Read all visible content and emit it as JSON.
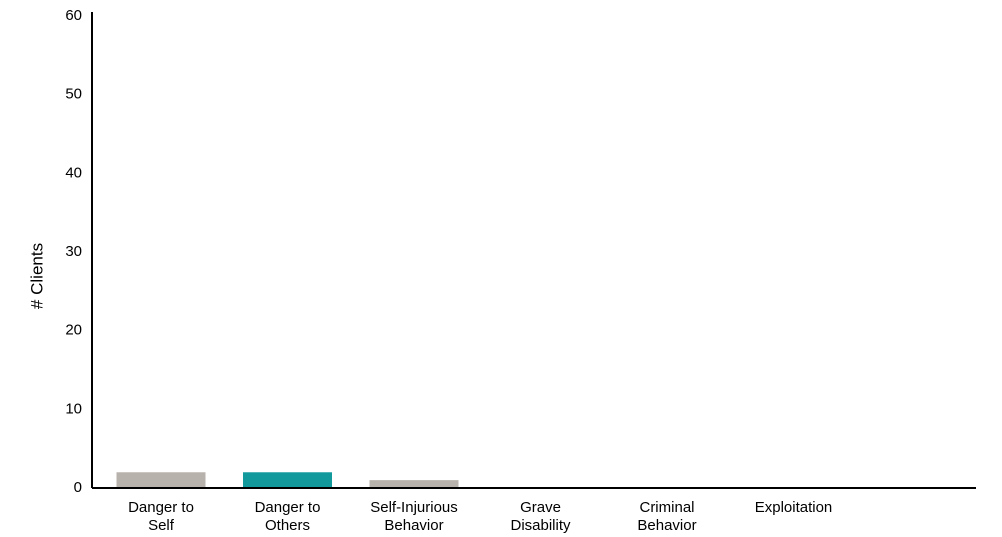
{
  "chart_data": {
    "type": "bar",
    "title": "",
    "xlabel": "",
    "ylabel": "# Clients",
    "ylim": [
      0,
      60
    ],
    "yticks": [
      0,
      10,
      20,
      30,
      40,
      50,
      60
    ],
    "grid": false,
    "categories": [
      [
        "Danger to",
        "Self"
      ],
      [
        "Danger to",
        "Others"
      ],
      [
        "Self-Injurious",
        "Behavior"
      ],
      [
        "Grave",
        "Disability"
      ],
      [
        "Criminal",
        "Behavior"
      ],
      [
        "Exploitation"
      ]
    ],
    "values": [
      2,
      2,
      1,
      0,
      0,
      0
    ],
    "bar_colors": [
      "#b8b2ac",
      "#12999b",
      "#b8b2ac",
      "#b8b2ac",
      "#b8b2ac",
      "#b8b2ac"
    ],
    "axis_color": "#000000"
  }
}
